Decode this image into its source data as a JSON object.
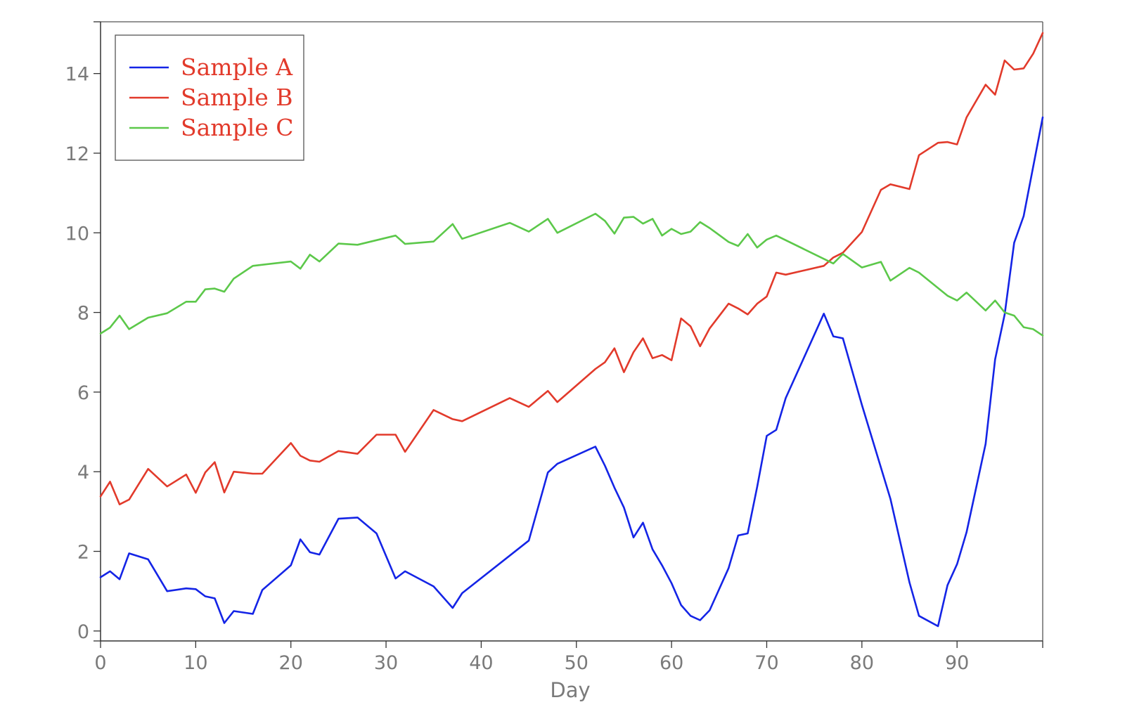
{
  "chart_data": {
    "type": "line",
    "title": "",
    "xlabel": "Day",
    "ylabel": "",
    "xlim": [
      0,
      99
    ],
    "ylim": [
      -0.25,
      15.3
    ],
    "x_ticks": [
      0,
      10,
      20,
      30,
      40,
      50,
      60,
      70,
      80,
      90
    ],
    "y_ticks": [
      0,
      2,
      4,
      6,
      8,
      10,
      12,
      14
    ],
    "grid": false,
    "legend_position": "top-left",
    "series": [
      {
        "name": "Sample A",
        "color": "#1424e6",
        "points": [
          [
            0,
            1.35
          ],
          [
            1,
            1.5
          ],
          [
            2,
            1.3
          ],
          [
            3,
            1.95
          ],
          [
            5,
            1.8
          ],
          [
            7,
            1.0
          ],
          [
            9,
            1.07
          ],
          [
            10,
            1.05
          ],
          [
            11,
            0.87
          ],
          [
            12,
            0.82
          ],
          [
            13,
            0.2
          ],
          [
            14,
            0.5
          ],
          [
            16,
            0.43
          ],
          [
            17,
            1.03
          ],
          [
            20,
            1.65
          ],
          [
            21,
            2.3
          ],
          [
            22,
            1.98
          ],
          [
            23,
            1.92
          ],
          [
            25,
            2.82
          ],
          [
            27,
            2.85
          ],
          [
            29,
            2.45
          ],
          [
            31,
            1.32
          ],
          [
            32,
            1.5
          ],
          [
            35,
            1.12
          ],
          [
            37,
            0.58
          ],
          [
            38,
            0.95
          ],
          [
            45,
            2.27
          ],
          [
            47,
            3.98
          ],
          [
            48,
            4.2
          ],
          [
            52,
            4.63
          ],
          [
            53,
            4.15
          ],
          [
            54,
            3.6
          ],
          [
            55,
            3.1
          ],
          [
            56,
            2.35
          ],
          [
            57,
            2.72
          ],
          [
            58,
            2.05
          ],
          [
            59,
            1.65
          ],
          [
            60,
            1.2
          ],
          [
            61,
            0.65
          ],
          [
            62,
            0.38
          ],
          [
            63,
            0.27
          ],
          [
            64,
            0.52
          ],
          [
            66,
            1.58
          ],
          [
            67,
            2.4
          ],
          [
            68,
            2.45
          ],
          [
            69,
            3.62
          ],
          [
            70,
            4.9
          ],
          [
            71,
            5.05
          ],
          [
            72,
            5.85
          ],
          [
            76,
            7.97
          ],
          [
            77,
            7.4
          ],
          [
            78,
            7.35
          ],
          [
            80,
            5.68
          ],
          [
            83,
            3.32
          ],
          [
            85,
            1.22
          ],
          [
            86,
            0.38
          ],
          [
            88,
            0.12
          ],
          [
            89,
            1.15
          ],
          [
            90,
            1.68
          ],
          [
            91,
            2.48
          ],
          [
            93,
            4.7
          ],
          [
            94,
            6.82
          ],
          [
            95,
            7.95
          ],
          [
            96,
            9.75
          ],
          [
            97,
            10.42
          ],
          [
            99,
            12.9
          ]
        ]
      },
      {
        "name": "Sample B",
        "color": "#e23a2b",
        "points": [
          [
            0,
            3.38
          ],
          [
            1,
            3.75
          ],
          [
            2,
            3.18
          ],
          [
            3,
            3.3
          ],
          [
            5,
            4.07
          ],
          [
            7,
            3.63
          ],
          [
            9,
            3.93
          ],
          [
            10,
            3.47
          ],
          [
            11,
            3.98
          ],
          [
            12,
            4.24
          ],
          [
            13,
            3.48
          ],
          [
            14,
            4.0
          ],
          [
            16,
            3.95
          ],
          [
            17,
            3.95
          ],
          [
            20,
            4.72
          ],
          [
            21,
            4.4
          ],
          [
            22,
            4.28
          ],
          [
            23,
            4.25
          ],
          [
            25,
            4.52
          ],
          [
            27,
            4.45
          ],
          [
            29,
            4.93
          ],
          [
            31,
            4.93
          ],
          [
            32,
            4.5
          ],
          [
            35,
            5.55
          ],
          [
            37,
            5.32
          ],
          [
            38,
            5.27
          ],
          [
            43,
            5.85
          ],
          [
            45,
            5.63
          ],
          [
            47,
            6.03
          ],
          [
            48,
            5.75
          ],
          [
            52,
            6.58
          ],
          [
            53,
            6.75
          ],
          [
            54,
            7.1
          ],
          [
            55,
            6.5
          ],
          [
            56,
            7.0
          ],
          [
            57,
            7.35
          ],
          [
            58,
            6.85
          ],
          [
            59,
            6.93
          ],
          [
            60,
            6.8
          ],
          [
            61,
            7.85
          ],
          [
            62,
            7.65
          ],
          [
            63,
            7.15
          ],
          [
            64,
            7.6
          ],
          [
            66,
            8.22
          ],
          [
            67,
            8.1
          ],
          [
            68,
            7.95
          ],
          [
            69,
            8.22
          ],
          [
            70,
            8.4
          ],
          [
            71,
            9.0
          ],
          [
            72,
            8.95
          ],
          [
            76,
            9.17
          ],
          [
            77,
            9.38
          ],
          [
            78,
            9.5
          ],
          [
            80,
            10.02
          ],
          [
            82,
            11.08
          ],
          [
            83,
            11.22
          ],
          [
            85,
            11.1
          ],
          [
            86,
            11.95
          ],
          [
            88,
            12.26
          ],
          [
            89,
            12.28
          ],
          [
            90,
            12.22
          ],
          [
            91,
            12.9
          ],
          [
            93,
            13.72
          ],
          [
            94,
            13.47
          ],
          [
            95,
            14.33
          ],
          [
            96,
            14.1
          ],
          [
            97,
            14.13
          ],
          [
            98,
            14.5
          ],
          [
            99,
            15.02
          ]
        ]
      },
      {
        "name": "Sample C",
        "color": "#5cc84a",
        "points": [
          [
            0,
            7.47
          ],
          [
            1,
            7.62
          ],
          [
            2,
            7.92
          ],
          [
            3,
            7.58
          ],
          [
            5,
            7.87
          ],
          [
            7,
            7.98
          ],
          [
            9,
            8.27
          ],
          [
            10,
            8.27
          ],
          [
            11,
            8.58
          ],
          [
            12,
            8.6
          ],
          [
            13,
            8.52
          ],
          [
            14,
            8.85
          ],
          [
            16,
            9.17
          ],
          [
            20,
            9.28
          ],
          [
            21,
            9.1
          ],
          [
            22,
            9.45
          ],
          [
            23,
            9.28
          ],
          [
            25,
            9.73
          ],
          [
            27,
            9.7
          ],
          [
            31,
            9.93
          ],
          [
            32,
            9.72
          ],
          [
            35,
            9.78
          ],
          [
            37,
            10.22
          ],
          [
            38,
            9.85
          ],
          [
            43,
            10.25
          ],
          [
            45,
            10.03
          ],
          [
            47,
            10.35
          ],
          [
            48,
            10.0
          ],
          [
            52,
            10.48
          ],
          [
            53,
            10.3
          ],
          [
            54,
            9.98
          ],
          [
            55,
            10.38
          ],
          [
            56,
            10.4
          ],
          [
            57,
            10.23
          ],
          [
            58,
            10.35
          ],
          [
            59,
            9.93
          ],
          [
            60,
            10.1
          ],
          [
            61,
            9.97
          ],
          [
            62,
            10.03
          ],
          [
            63,
            10.27
          ],
          [
            64,
            10.12
          ],
          [
            66,
            9.77
          ],
          [
            67,
            9.67
          ],
          [
            68,
            9.97
          ],
          [
            69,
            9.63
          ],
          [
            70,
            9.83
          ],
          [
            71,
            9.93
          ],
          [
            77,
            9.23
          ],
          [
            78,
            9.47
          ],
          [
            80,
            9.13
          ],
          [
            82,
            9.27
          ],
          [
            83,
            8.8
          ],
          [
            85,
            9.12
          ],
          [
            86,
            9.0
          ],
          [
            89,
            8.42
          ],
          [
            90,
            8.3
          ],
          [
            91,
            8.5
          ],
          [
            93,
            8.05
          ],
          [
            94,
            8.3
          ],
          [
            95,
            8.0
          ],
          [
            96,
            7.92
          ],
          [
            97,
            7.63
          ],
          [
            98,
            7.58
          ],
          [
            99,
            7.42
          ]
        ]
      }
    ]
  }
}
